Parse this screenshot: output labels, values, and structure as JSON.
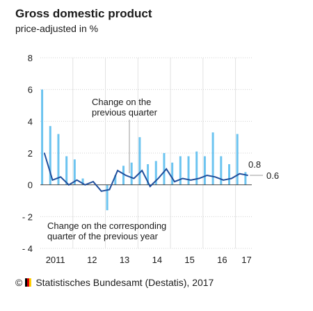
{
  "title": "Gross domestic product",
  "subtitle": "price-adjusted in %",
  "credit": {
    "symbol": "©",
    "text": "Statistisches Bundesamt (Destatis), 2017",
    "flag_colors": [
      "#000000",
      "#dd0000",
      "#ffce00"
    ]
  },
  "chart_data": {
    "type": "bar",
    "ylim": [
      -4,
      8
    ],
    "yticks": [
      "8",
      "6",
      "4",
      "2",
      "0",
      "- 2",
      "- 4"
    ],
    "ytick_values": [
      8,
      6,
      4,
      2,
      0,
      -2,
      -4
    ],
    "xticks": [
      {
        "label": "2011",
        "index": 1
      },
      {
        "label": "12",
        "index": 5.5
      },
      {
        "label": "13",
        "index": 9.5
      },
      {
        "label": "14",
        "index": 13.5
      },
      {
        "label": "15",
        "index": 17.5
      },
      {
        "label": "16",
        "index": 21.5
      },
      {
        "label": "17",
        "index": 24.5
      }
    ],
    "year_dividers": [
      3.5,
      7.5,
      11.5,
      15.5,
      19.5,
      23.5
    ],
    "bar_color": "#6cc4f0",
    "line_color": "#1f4e9c",
    "series": [
      {
        "name": "Change on the corresponding quarter of the previous year",
        "type": "bar",
        "values": [
          6.0,
          3.7,
          3.2,
          1.8,
          1.6,
          0.4,
          0.0,
          0.0,
          -1.6,
          0.6,
          1.2,
          1.4,
          3.0,
          1.3,
          1.5,
          2.0,
          1.4,
          1.8,
          1.8,
          2.1,
          1.8,
          3.3,
          1.8,
          1.3,
          3.2,
          0.8
        ]
      },
      {
        "name": "Change on the previous quarter",
        "type": "line",
        "values": [
          2.0,
          0.3,
          0.5,
          0.0,
          0.3,
          0.0,
          0.2,
          -0.4,
          -0.3,
          0.9,
          0.6,
          0.4,
          0.9,
          -0.1,
          0.4,
          1.0,
          0.2,
          0.4,
          0.3,
          0.4,
          0.6,
          0.5,
          0.3,
          0.4,
          0.7,
          0.6
        ]
      }
    ],
    "annotations": {
      "quarter_label_1": "Change on the",
      "quarter_label_2": "previous quarter",
      "year_label_1": "Change on the corresponding",
      "year_label_2": "quarter of the previous year",
      "last_bar_value": "0.8",
      "last_line_value": "0.6"
    }
  }
}
